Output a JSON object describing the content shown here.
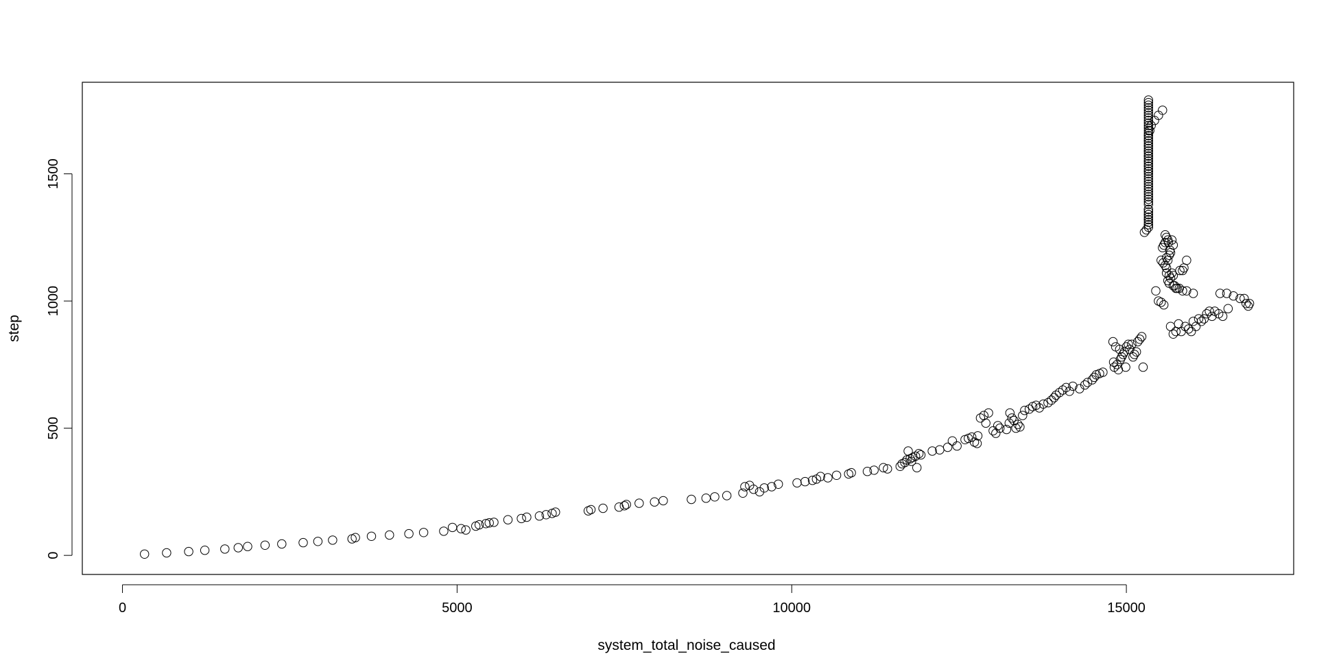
{
  "chart_data": {
    "type": "scatter",
    "title": "",
    "xlabel": "system_total_noise_caused",
    "ylabel": "step",
    "xlim": [
      -600,
      17500
    ],
    "ylim": [
      -75,
      1860
    ],
    "x_ticks": [
      0,
      5000,
      10000,
      15000
    ],
    "x_tick_labels": [
      "0",
      "5000",
      "10000",
      "15000"
    ],
    "y_ticks": [
      0,
      500,
      1000,
      1500
    ],
    "y_tick_labels": [
      "0",
      "500",
      "1000",
      "1500"
    ],
    "grid": false,
    "legend": "none",
    "marker": "open-circle",
    "colors": {
      "marker": "#000000",
      "axis": "#000000",
      "background": "#ffffff"
    },
    "points_x": [
      330,
      660,
      990,
      1230,
      1530,
      1730,
      1870,
      2130,
      2380,
      2700,
      2920,
      3140,
      3430,
      3480,
      3720,
      3990,
      4280,
      4500,
      4800,
      4930,
      5060,
      5130,
      5280,
      5330,
      5430,
      5480,
      5550,
      5760,
      5960,
      6040,
      6230,
      6330,
      6420,
      6470,
      6960,
      7000,
      7180,
      7420,
      7500,
      7530,
      7720,
      7950,
      8080,
      8500,
      8720,
      8850,
      9030,
      9270,
      9300,
      9370,
      9430,
      9520,
      9590,
      9700,
      9800,
      10080,
      10200,
      10310,
      10370,
      10430,
      10540,
      10670,
      10850,
      10890,
      11130,
      11230,
      11370,
      11430,
      11620,
      11650,
      11690,
      11720,
      11740,
      11770,
      11790,
      11810,
      11850,
      11870,
      11900,
      11930,
      12100,
      12210,
      12330,
      12400,
      12470,
      12590,
      12640,
      12690,
      12730,
      12770,
      12780,
      12820,
      12870,
      12900,
      12940,
      13010,
      13050,
      13080,
      13110,
      13210,
      13250,
      13260,
      13290,
      13320,
      13350,
      13380,
      13410,
      13450,
      13480,
      13550,
      13600,
      13650,
      13700,
      13760,
      13830,
      13880,
      13920,
      13950,
      14000,
      14050,
      14100,
      14150,
      14200,
      14300,
      14380,
      14420,
      14490,
      14520,
      14550,
      14600,
      14650,
      14800,
      14810,
      14820,
      14840,
      14860,
      14880,
      14900,
      14910,
      14930,
      14950,
      14970,
      14990,
      15000,
      15030,
      15050,
      15080,
      15100,
      15120,
      15150,
      15170,
      15200,
      15230,
      15250,
      15270,
      15300,
      15330,
      15330,
      15330,
      15330,
      15330,
      15330,
      15330,
      15330,
      15330,
      15330,
      15330,
      15330,
      15330,
      15330,
      15330,
      15330,
      15330,
      15330,
      15330,
      15330,
      15330,
      15330,
      15330,
      15330,
      15330,
      15330,
      15330,
      15330,
      15330,
      15330,
      15330,
      15330,
      15330,
      15330,
      15330,
      15330,
      15330,
      15330,
      15330,
      15330,
      15330,
      15330,
      15330,
      15330,
      15330,
      15330,
      15330,
      15330,
      15330,
      15330,
      15330,
      15330,
      15330,
      15330,
      15330,
      15330,
      15330,
      15330,
      15330,
      15330,
      15330,
      15330,
      15350,
      15370,
      15420,
      15480,
      15540,
      15580,
      15600,
      15620,
      15630,
      15640,
      15650,
      15660,
      15680,
      15700,
      15540,
      15560,
      15580,
      15600,
      15620,
      15640,
      15660,
      15680,
      15700,
      15720,
      15760,
      15800,
      15840,
      15860,
      15900,
      15440,
      15520,
      15550,
      15580,
      15600,
      15620,
      15660,
      15700,
      15740,
      15780,
      15820,
      15880,
      15930,
      15970,
      16000,
      16040,
      16080,
      16120,
      16160,
      16200,
      16240,
      16280,
      16320,
      16380,
      16440,
      16520,
      16600,
      16700,
      16760,
      16790,
      16820,
      16840,
      15480,
      15520,
      15560,
      15600,
      15640,
      15700,
      15740,
      15790,
      15840,
      15900,
      16000,
      16400,
      16500
    ],
    "points_y": [
      5,
      10,
      15,
      20,
      25,
      30,
      35,
      40,
      45,
      50,
      55,
      60,
      65,
      70,
      75,
      80,
      85,
      90,
      95,
      110,
      105,
      100,
      115,
      120,
      125,
      128,
      130,
      140,
      145,
      150,
      155,
      160,
      165,
      170,
      175,
      180,
      185,
      190,
      195,
      200,
      205,
      210,
      215,
      220,
      225,
      230,
      235,
      245,
      270,
      275,
      260,
      250,
      265,
      270,
      280,
      285,
      290,
      295,
      300,
      310,
      305,
      315,
      320,
      325,
      330,
      335,
      345,
      340,
      350,
      360,
      365,
      375,
      410,
      380,
      370,
      385,
      390,
      345,
      400,
      395,
      410,
      415,
      425,
      450,
      430,
      455,
      460,
      465,
      445,
      440,
      470,
      540,
      550,
      520,
      560,
      490,
      480,
      510,
      500,
      495,
      520,
      560,
      540,
      530,
      500,
      515,
      505,
      550,
      570,
      575,
      585,
      590,
      580,
      595,
      600,
      610,
      620,
      630,
      640,
      650,
      660,
      645,
      665,
      655,
      670,
      680,
      690,
      700,
      710,
      715,
      720,
      840,
      760,
      740,
      820,
      750,
      730,
      810,
      770,
      780,
      790,
      800,
      740,
      820,
      830,
      810,
      830,
      780,
      790,
      800,
      840,
      850,
      860,
      740,
      1270,
      1280,
      1290,
      1300,
      1310,
      1320,
      1330,
      1340,
      1350,
      1360,
      1380,
      1400,
      1420,
      1440,
      1460,
      1480,
      1500,
      1510,
      1520,
      1530,
      1540,
      1550,
      1560,
      1570,
      1580,
      1590,
      1600,
      1610,
      1620,
      1630,
      1640,
      1650,
      1660,
      1670,
      1680,
      1690,
      1700,
      1710,
      1720,
      1730,
      1740,
      1750,
      1760,
      1770,
      1780,
      1790,
      1300,
      1320,
      1340,
      1360,
      1390,
      1410,
      1430,
      1450,
      1470,
      1490,
      1510,
      1530,
      1550,
      1570,
      1590,
      1610,
      1630,
      1650,
      1670,
      1690,
      1710,
      1730,
      1750,
      1260,
      1250,
      1240,
      1230,
      1180,
      1200,
      1190,
      1240,
      1220,
      1210,
      1220,
      1230,
      1170,
      1160,
      1070,
      1090,
      1110,
      1100,
      1060,
      1050,
      1120,
      1120,
      1130,
      1160,
      1040,
      1160,
      1150,
      1140,
      1130,
      1080,
      900,
      870,
      880,
      910,
      880,
      900,
      890,
      880,
      920,
      900,
      930,
      920,
      930,
      950,
      960,
      940,
      960,
      950,
      940,
      970,
      1020,
      1010,
      1010,
      990,
      980,
      990,
      1000,
      995,
      985,
      1110,
      1100,
      1060,
      1050,
      1050,
      1040,
      1040,
      1030,
      1030,
      1030,
      1030,
      1020,
      1010
    ]
  }
}
